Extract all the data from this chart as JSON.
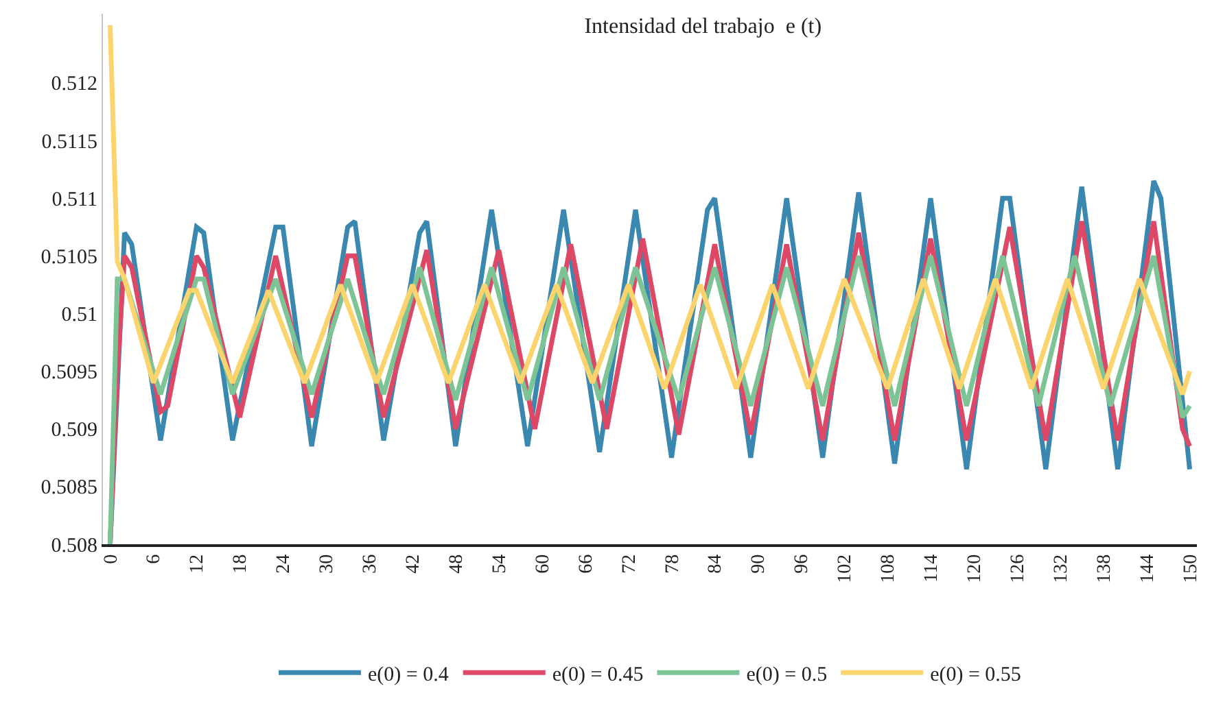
{
  "chart_data": {
    "type": "line",
    "title": "Intensidad del trabajo  e (t)",
    "xlim": [
      -1,
      151
    ],
    "xticks": [
      0,
      6,
      12,
      18,
      24,
      30,
      36,
      42,
      48,
      54,
      60,
      66,
      72,
      78,
      84,
      90,
      96,
      102,
      108,
      114,
      120,
      126,
      132,
      138,
      144,
      150
    ],
    "ylim": [
      0.508,
      0.5126
    ],
    "yticks": [
      0.508,
      0.5085,
      0.509,
      0.5095,
      0.51,
      0.5105,
      0.511,
      0.5115,
      0.512
    ],
    "legend": "bottom",
    "marker": "none",
    "line_style": "solid",
    "series": [
      {
        "name": "e(0) = 0.4",
        "color": "#3a87b0",
        "x": [
          0,
          2,
          3,
          7,
          12,
          13,
          17,
          23,
          24,
          28,
          33,
          34,
          38,
          43,
          44,
          48,
          53,
          58,
          63,
          68,
          73,
          78,
          83,
          84,
          89,
          94,
          99,
          104,
          109,
          114,
          119,
          124,
          125,
          130,
          135,
          140,
          145,
          146,
          150
        ],
        "values": [
          0.508,
          0.5107,
          0.5106,
          0.5089,
          0.51075,
          0.5107,
          0.5089,
          0.51075,
          0.51075,
          0.50885,
          0.51075,
          0.5108,
          0.5089,
          0.5107,
          0.5108,
          0.50885,
          0.5109,
          0.50885,
          0.5109,
          0.5088,
          0.5109,
          0.50875,
          0.5109,
          0.511,
          0.50875,
          0.511,
          0.50875,
          0.51105,
          0.5087,
          0.511,
          0.50865,
          0.511,
          0.511,
          0.50865,
          0.5111,
          0.50865,
          0.51115,
          0.511,
          0.50865
        ]
      },
      {
        "name": "e(0) = 0.45",
        "color": "#dc4866",
        "x": [
          0,
          1,
          2,
          3,
          7,
          8,
          12,
          13,
          18,
          23,
          28,
          33,
          34,
          38,
          44,
          48,
          54,
          59,
          64,
          69,
          74,
          79,
          84,
          89,
          94,
          99,
          104,
          109,
          114,
          119,
          125,
          130,
          135,
          140,
          145,
          149,
          150
        ],
        "values": [
          0.508,
          0.5095,
          0.5105,
          0.5104,
          0.50915,
          0.5092,
          0.5105,
          0.5104,
          0.5091,
          0.5105,
          0.5091,
          0.5105,
          0.5105,
          0.5091,
          0.51055,
          0.509,
          0.51055,
          0.509,
          0.5106,
          0.509,
          0.51065,
          0.50895,
          0.5106,
          0.50895,
          0.5106,
          0.5089,
          0.5107,
          0.5089,
          0.51065,
          0.5089,
          0.51075,
          0.5089,
          0.5108,
          0.5089,
          0.5108,
          0.509,
          0.50885
        ]
      },
      {
        "name": "e(0) = 0.5",
        "color": "#7cc396",
        "x": [
          0,
          1,
          2,
          7,
          12,
          13,
          17,
          23,
          28,
          33,
          38,
          43,
          48,
          53,
          58,
          63,
          68,
          73,
          79,
          84,
          89,
          94,
          99,
          104,
          109,
          114,
          119,
          124,
          129,
          134,
          139,
          145,
          149,
          150
        ],
        "values": [
          0.508,
          0.5103,
          0.5103,
          0.5093,
          0.5103,
          0.5103,
          0.5093,
          0.5103,
          0.5093,
          0.5103,
          0.5093,
          0.5104,
          0.50925,
          0.5104,
          0.50925,
          0.5104,
          0.50925,
          0.5104,
          0.50925,
          0.5104,
          0.5092,
          0.5104,
          0.5092,
          0.5105,
          0.5092,
          0.5105,
          0.5092,
          0.5105,
          0.5092,
          0.5105,
          0.5092,
          0.5105,
          0.5091,
          0.5092
        ]
      },
      {
        "name": "e(0) = 0.55",
        "color": "#fbd46d",
        "x": [
          0,
          1,
          2,
          6,
          11,
          12,
          17,
          22,
          27,
          32,
          37,
          42,
          47,
          52,
          57,
          62,
          67,
          72,
          77,
          82,
          87,
          92,
          97,
          102,
          108,
          113,
          118,
          123,
          128,
          133,
          138,
          143,
          149,
          150
        ],
        "values": [
          0.5125,
          0.51045,
          0.5103,
          0.5094,
          0.5102,
          0.5102,
          0.5094,
          0.5102,
          0.5094,
          0.51025,
          0.5094,
          0.51025,
          0.5094,
          0.51025,
          0.5094,
          0.51025,
          0.5094,
          0.51025,
          0.50935,
          0.51025,
          0.50935,
          0.51025,
          0.50935,
          0.5103,
          0.50935,
          0.5103,
          0.50935,
          0.5103,
          0.50935,
          0.5103,
          0.50935,
          0.5103,
          0.5093,
          0.5095
        ]
      }
    ]
  }
}
